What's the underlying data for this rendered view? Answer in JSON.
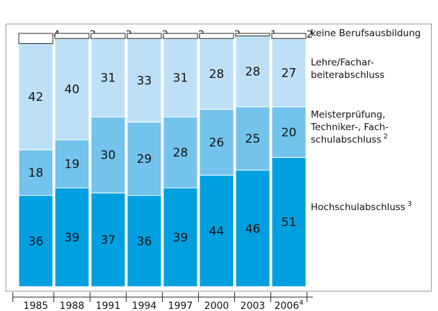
{
  "chart_data": {
    "type": "stacked-bar",
    "categories": [
      "1985",
      "1988",
      "1991",
      "1994",
      "1997",
      "2000",
      "2003",
      "2006"
    ],
    "category_notes": [
      null,
      null,
      null,
      null,
      null,
      null,
      null,
      "4"
    ],
    "ylim": [
      0,
      100
    ],
    "series": [
      {
        "name": [
          "Hochschulabschluss"
        ],
        "note": "3",
        "color": "#009fe0",
        "values": [
          36,
          39,
          37,
          36,
          39,
          44,
          46,
          51
        ]
      },
      {
        "name": [
          "Meisterprüfung,",
          "Techniker-, Fach-",
          "schulabschluss"
        ],
        "note": "2",
        "color": "#73c3ec",
        "values": [
          18,
          19,
          30,
          29,
          28,
          26,
          25,
          20
        ]
      },
      {
        "name": [
          "Lehre/Fachar-",
          "beiterabschluss"
        ],
        "note": null,
        "color": "#bde0f6",
        "values": [
          42,
          40,
          31,
          33,
          31,
          28,
          28,
          27
        ]
      },
      {
        "name": [
          "keine Berufsausbildung"
        ],
        "note": null,
        "color": "#ffffff",
        "values": [
          4,
          2,
          2,
          2,
          2,
          2,
          1,
          2
        ]
      }
    ]
  }
}
